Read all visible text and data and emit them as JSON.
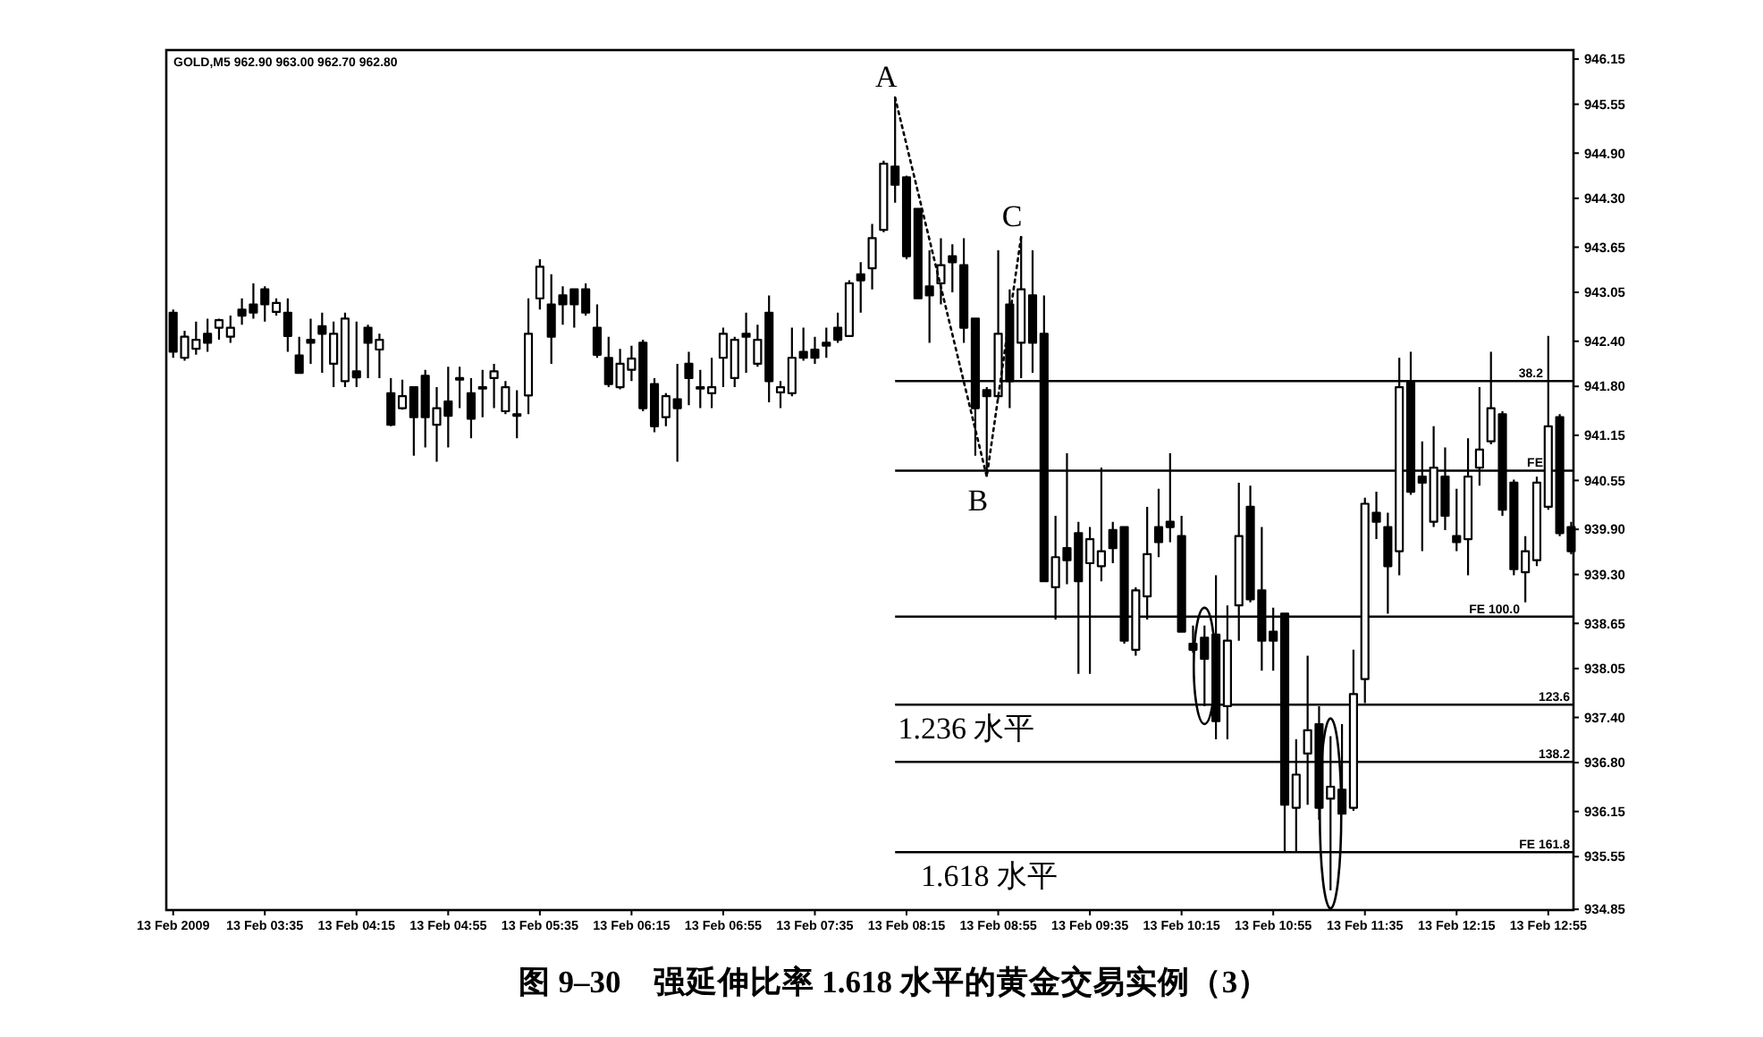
{
  "chart_data": {
    "type": "candlestick",
    "title": "图 9–30　强延伸比率 1.618 水平的黄金交易实例（3）",
    "subtitle": "GOLD,M5 962.90 963.00 962.70 962.80",
    "color": "#000000",
    "x": [
      "2009-02-13T02:55",
      "2009-02-13T03:00",
      "2009-02-13T03:05",
      "2009-02-13T03:10",
      "2009-02-13T03:15",
      "2009-02-13T03:20",
      "2009-02-13T03:25",
      "2009-02-13T03:30",
      "2009-02-13T03:35",
      "2009-02-13T03:40",
      "2009-02-13T03:45",
      "2009-02-13T03:50",
      "2009-02-13T03:55",
      "2009-02-13T04:00",
      "2009-02-13T04:05",
      "2009-02-13T04:10",
      "2009-02-13T04:15",
      "2009-02-13T04:20",
      "2009-02-13T04:25",
      "2009-02-13T04:30",
      "2009-02-13T04:35",
      "2009-02-13T04:40",
      "2009-02-13T04:45",
      "2009-02-13T04:50",
      "2009-02-13T04:55",
      "2009-02-13T05:00",
      "2009-02-13T05:05",
      "2009-02-13T05:10",
      "2009-02-13T05:15",
      "2009-02-13T05:20",
      "2009-02-13T05:25",
      "2009-02-13T05:30",
      "2009-02-13T05:35",
      "2009-02-13T05:40",
      "2009-02-13T05:45",
      "2009-02-13T05:50",
      "2009-02-13T05:55",
      "2009-02-13T06:00",
      "2009-02-13T06:05",
      "2009-02-13T06:10",
      "2009-02-13T06:15",
      "2009-02-13T06:20",
      "2009-02-13T06:25",
      "2009-02-13T06:30",
      "2009-02-13T06:35",
      "2009-02-13T06:40",
      "2009-02-13T06:45",
      "2009-02-13T06:50",
      "2009-02-13T06:55",
      "2009-02-13T07:00",
      "2009-02-13T07:05",
      "2009-02-13T07:10",
      "2009-02-13T07:15",
      "2009-02-13T07:20",
      "2009-02-13T07:25",
      "2009-02-13T07:30",
      "2009-02-13T07:35",
      "2009-02-13T07:40",
      "2009-02-13T07:45",
      "2009-02-13T07:50",
      "2009-02-13T07:55",
      "2009-02-13T08:00",
      "2009-02-13T08:05",
      "2009-02-13T08:10",
      "2009-02-13T08:15",
      "2009-02-13T08:20",
      "2009-02-13T08:25",
      "2009-02-13T08:30",
      "2009-02-13T08:35",
      "2009-02-13T08:40",
      "2009-02-13T08:45",
      "2009-02-13T08:50",
      "2009-02-13T08:55",
      "2009-02-13T09:00",
      "2009-02-13T09:05",
      "2009-02-13T09:10",
      "2009-02-13T09:15",
      "2009-02-13T09:20",
      "2009-02-13T09:25",
      "2009-02-13T09:30",
      "2009-02-13T09:35",
      "2009-02-13T09:40",
      "2009-02-13T09:45",
      "2009-02-13T09:50",
      "2009-02-13T09:55",
      "2009-02-13T10:00",
      "2009-02-13T10:05",
      "2009-02-13T10:10",
      "2009-02-13T10:15",
      "2009-02-13T10:20",
      "2009-02-13T10:25",
      "2009-02-13T10:30",
      "2009-02-13T10:35",
      "2009-02-13T10:40",
      "2009-02-13T10:45",
      "2009-02-13T10:50",
      "2009-02-13T10:55",
      "2009-02-13T11:00",
      "2009-02-13T11:05",
      "2009-02-13T11:10",
      "2009-02-13T11:15",
      "2009-02-13T11:20",
      "2009-02-13T11:25",
      "2009-02-13T11:30",
      "2009-02-13T11:35",
      "2009-02-13T11:40",
      "2009-02-13T11:45",
      "2009-02-13T11:50",
      "2009-02-13T11:55",
      "2009-02-13T12:00",
      "2009-02-13T12:05",
      "2009-02-13T12:10",
      "2009-02-13T12:15",
      "2009-02-13T12:20",
      "2009-02-13T12:25",
      "2009-02-13T12:30",
      "2009-02-13T12:35",
      "2009-02-13T12:40",
      "2009-02-13T12:45",
      "2009-02-13T12:50",
      "2009-02-13T12:55",
      "2009-02-13T13:00",
      "2009-02-13T13:05"
    ],
    "ohlc": [
      [
        942.78,
        942.82,
        942.18,
        942.26
      ],
      [
        942.18,
        942.54,
        942.14,
        942.46
      ],
      [
        942.3,
        942.66,
        942.22,
        942.42
      ],
      [
        942.5,
        942.7,
        942.26,
        942.38
      ],
      [
        942.58,
        942.7,
        942.42,
        942.68
      ],
      [
        942.46,
        942.74,
        942.38,
        942.58
      ],
      [
        942.82,
        942.97,
        942.62,
        942.74
      ],
      [
        942.89,
        943.17,
        942.7,
        942.78
      ],
      [
        943.09,
        943.13,
        942.66,
        942.89
      ],
      [
        942.79,
        942.97,
        942.74,
        942.91
      ],
      [
        942.78,
        942.97,
        942.26,
        942.47
      ],
      [
        942.21,
        942.46,
        941.98,
        941.98
      ],
      [
        942.42,
        942.7,
        942.1,
        942.38
      ],
      [
        942.6,
        942.78,
        941.98,
        942.5
      ],
      [
        942.1,
        942.66,
        941.79,
        942.5
      ],
      [
        941.87,
        942.78,
        941.79,
        942.7
      ],
      [
        942.0,
        942.66,
        941.79,
        941.92
      ],
      [
        942.58,
        942.62,
        941.91,
        942.38
      ],
      [
        942.29,
        942.5,
        941.91,
        942.42
      ],
      [
        941.71,
        941.91,
        941.27,
        941.29
      ],
      [
        941.51,
        941.89,
        941.49,
        941.67
      ],
      [
        941.79,
        941.79,
        940.88,
        941.39
      ],
      [
        941.94,
        942.02,
        940.99,
        941.39
      ],
      [
        941.29,
        941.79,
        940.8,
        941.51
      ],
      [
        941.6,
        942.06,
        940.99,
        941.41
      ],
      [
        941.91,
        942.06,
        941.51,
        941.89
      ],
      [
        941.71,
        941.91,
        941.11,
        941.37
      ],
      [
        941.79,
        942.02,
        941.39,
        941.77
      ],
      [
        941.91,
        942.1,
        941.51,
        942.0
      ],
      [
        941.47,
        941.87,
        941.43,
        941.79
      ],
      [
        941.41,
        941.75,
        941.11,
        941.43
      ],
      [
        941.68,
        942.97,
        941.43,
        942.5
      ],
      [
        942.97,
        943.49,
        942.82,
        943.39
      ],
      [
        942.89,
        943.29,
        942.1,
        942.46
      ],
      [
        943.01,
        943.13,
        942.62,
        942.89
      ],
      [
        943.09,
        943.09,
        942.58,
        942.89
      ],
      [
        943.09,
        943.17,
        942.74,
        942.78
      ],
      [
        942.58,
        942.89,
        942.18,
        942.22
      ],
      [
        942.18,
        942.46,
        941.79,
        941.83
      ],
      [
        941.79,
        942.3,
        941.76,
        942.1
      ],
      [
        942.02,
        942.34,
        941.87,
        942.17
      ],
      [
        942.38,
        942.42,
        941.47,
        941.51
      ],
      [
        941.83,
        941.91,
        941.19,
        941.27
      ],
      [
        941.39,
        941.71,
        941.27,
        941.67
      ],
      [
        941.63,
        942.1,
        940.8,
        941.51
      ],
      [
        942.1,
        942.26,
        941.55,
        941.91
      ],
      [
        941.77,
        942.02,
        941.51,
        941.79
      ],
      [
        941.71,
        942.18,
        941.51,
        941.79
      ],
      [
        942.18,
        942.58,
        941.79,
        942.5
      ],
      [
        941.91,
        942.46,
        941.79,
        942.42
      ],
      [
        942.5,
        942.78,
        941.98,
        942.46
      ],
      [
        942.1,
        942.62,
        942.06,
        942.42
      ],
      [
        942.78,
        943.01,
        941.59,
        941.87
      ],
      [
        941.72,
        941.87,
        941.51,
        941.79
      ],
      [
        941.71,
        942.58,
        941.67,
        942.18
      ],
      [
        942.26,
        942.58,
        942.14,
        942.18
      ],
      [
        942.29,
        942.46,
        942.1,
        942.18
      ],
      [
        942.38,
        942.58,
        942.18,
        942.34
      ],
      [
        942.58,
        942.78,
        942.38,
        942.42
      ],
      [
        942.47,
        943.21,
        942.46,
        943.17
      ],
      [
        943.29,
        943.45,
        942.78,
        943.21
      ],
      [
        943.37,
        943.96,
        943.09,
        943.77
      ],
      [
        943.88,
        944.8,
        943.85,
        944.76
      ],
      [
        944.72,
        945.64,
        944.24,
        944.48
      ],
      [
        944.58,
        944.6,
        943.49,
        943.53
      ],
      [
        944.16,
        944.16,
        942.97,
        942.97
      ],
      [
        943.13,
        943.61,
        942.38,
        943.01
      ],
      [
        943.17,
        943.77,
        942.89,
        943.41
      ],
      [
        943.53,
        943.69,
        943.05,
        943.45
      ],
      [
        943.41,
        943.77,
        942.38,
        942.58
      ],
      [
        942.7,
        942.7,
        940.88,
        941.51
      ],
      [
        941.75,
        941.79,
        940.6,
        941.67
      ],
      [
        941.67,
        943.61,
        941.63,
        942.5
      ],
      [
        942.89,
        943.09,
        941.51,
        941.87
      ],
      [
        942.38,
        943.79,
        941.91,
        943.09
      ],
      [
        943.01,
        943.61,
        941.98,
        942.38
      ],
      [
        942.5,
        943.01,
        939.21,
        939.21
      ],
      [
        939.13,
        940.08,
        938.7,
        939.53
      ],
      [
        939.65,
        940.91,
        939.17,
        939.49
      ],
      [
        939.85,
        940.0,
        937.98,
        939.21
      ],
      [
        939.45,
        939.93,
        937.98,
        939.77
      ],
      [
        939.41,
        940.72,
        939.21,
        939.61
      ],
      [
        939.89,
        940.0,
        939.45,
        939.65
      ],
      [
        939.93,
        939.93,
        938.38,
        938.42
      ],
      [
        938.3,
        939.13,
        938.22,
        939.09
      ],
      [
        939.01,
        940.2,
        938.7,
        939.57
      ],
      [
        939.93,
        940.44,
        939.53,
        939.73
      ],
      [
        940.0,
        940.91,
        939.73,
        939.93
      ],
      [
        939.81,
        940.08,
        938.54,
        938.54
      ],
      [
        938.38,
        938.62,
        938.26,
        938.3
      ],
      [
        938.46,
        938.62,
        937.55,
        938.18
      ],
      [
        938.5,
        939.29,
        937.11,
        937.35
      ],
      [
        937.55,
        938.89,
        937.11,
        938.42
      ],
      [
        938.89,
        940.52,
        938.42,
        939.81
      ],
      [
        940.2,
        940.48,
        938.93,
        938.97
      ],
      [
        939.09,
        939.93,
        938.02,
        938.42
      ],
      [
        938.54,
        938.86,
        938.02,
        938.42
      ],
      [
        938.78,
        938.78,
        935.61,
        936.24
      ],
      [
        936.2,
        937.11,
        935.61,
        936.64
      ],
      [
        936.92,
        938.22,
        936.24,
        937.23
      ],
      [
        937.31,
        937.55,
        936.04,
        936.2
      ],
      [
        936.32,
        937.15,
        935.1,
        936.48
      ],
      [
        936.44,
        937.31,
        936.12,
        936.12
      ],
      [
        936.2,
        938.3,
        936.16,
        937.71
      ],
      [
        937.91,
        940.32,
        937.59,
        940.24
      ],
      [
        940.12,
        940.4,
        939.77,
        940.0
      ],
      [
        939.93,
        940.12,
        938.78,
        939.41
      ],
      [
        939.61,
        942.18,
        939.29,
        941.79
      ],
      [
        941.87,
        942.26,
        940.36,
        940.4
      ],
      [
        940.6,
        941.07,
        939.61,
        940.52
      ],
      [
        940.0,
        941.27,
        939.93,
        940.72
      ],
      [
        940.6,
        940.99,
        939.89,
        940.08
      ],
      [
        939.81,
        940.44,
        939.61,
        939.73
      ],
      [
        939.77,
        941.11,
        939.29,
        940.6
      ],
      [
        940.72,
        941.79,
        940.48,
        940.96
      ],
      [
        941.07,
        942.26,
        941.03,
        941.51
      ],
      [
        941.43,
        941.47,
        940.08,
        940.16
      ],
      [
        940.52,
        940.56,
        939.29,
        939.37
      ],
      [
        939.33,
        939.81,
        938.93,
        939.61
      ],
      [
        939.49,
        940.6,
        939.41,
        940.52
      ],
      [
        940.2,
        942.47,
        940.16,
        941.27
      ],
      [
        941.39,
        941.43,
        939.81,
        939.85
      ],
      [
        939.93,
        940.0,
        939.57,
        939.61
      ]
    ],
    "series": [
      {
        "type": "line",
        "x": [
          "2009-02-13T08:10",
          "2009-02-13T08:50",
          "2009-02-13T09:05"
        ],
        "values": [
          945.64,
          940.6,
          943.79
        ],
        "color": "#000000",
        "line_style": "dotted"
      }
    ],
    "annotations": [
      {
        "text": "A",
        "x": "2009-02-13T08:10",
        "y": 945.64
      },
      {
        "text": "B",
        "x": "2009-02-13T08:50",
        "y": 940.6
      },
      {
        "text": "C",
        "x": "2009-02-13T09:05",
        "y": 943.79
      },
      {
        "text": "1.236 水平",
        "x": "2009-02-13T08:45",
        "y": 937.57
      },
      {
        "text": "1.618 水平",
        "x": "2009-02-13T08:55",
        "y": 935.61
      },
      {
        "text": "38.2",
        "x": "2009-02-13T13:06",
        "y": 941.87
      },
      {
        "text": "123.6",
        "x": "2009-02-13T13:06",
        "y": 937.57
      },
      {
        "text": "138.2",
        "x": "2009-02-13T13:06",
        "y": 936.81
      }
    ],
    "ref_lines": [
      {
        "axis": "y",
        "value": 941.87
      },
      {
        "axis": "y",
        "value": 940.68,
        "label": "FE"
      },
      {
        "axis": "y",
        "value": 938.74,
        "label": "FE 100.0"
      },
      {
        "axis": "y",
        "value": 937.57
      },
      {
        "axis": "y",
        "value": 936.81
      },
      {
        "axis": "y",
        "value": 935.61,
        "label": "FE 161.8"
      }
    ],
    "xlim": [
      "2009-02-13T02:52",
      "2009-02-13T13:06"
    ],
    "xticks": [
      {
        "value": "2009-02-13T02:55",
        "label": "13 Feb 2009"
      },
      {
        "value": "2009-02-13T03:35",
        "label": "13 Feb 03:35"
      },
      {
        "value": "2009-02-13T04:15",
        "label": "13 Feb 04:15"
      },
      {
        "value": "2009-02-13T04:55",
        "label": "13 Feb 04:55"
      },
      {
        "value": "2009-02-13T05:35",
        "label": "13 Feb 05:35"
      },
      {
        "value": "2009-02-13T06:15",
        "label": "13 Feb 06:15"
      },
      {
        "value": "2009-02-13T06:55",
        "label": "13 Feb 06:55"
      },
      {
        "value": "2009-02-13T07:35",
        "label": "13 Feb 07:35"
      },
      {
        "value": "2009-02-13T08:15",
        "label": "13 Feb 08:15"
      },
      {
        "value": "2009-02-13T08:55",
        "label": "13 Feb 08:55"
      },
      {
        "value": "2009-02-13T09:35",
        "label": "13 Feb 09:35"
      },
      {
        "value": "2009-02-13T10:15",
        "label": "13 Feb 10:15"
      },
      {
        "value": "2009-02-13T10:55",
        "label": "13 Feb 10:55"
      },
      {
        "value": "2009-02-13T11:35",
        "label": "13 Feb 11:35"
      },
      {
        "value": "2009-02-13T12:15",
        "label": "13 Feb 12:15"
      },
      {
        "value": "2009-02-13T12:55",
        "label": "13 Feb 12:55"
      }
    ],
    "ylim": [
      934.84,
      946.27
    ],
    "yticks": [
      946.15,
      945.55,
      {
        "value": 944.9,
        "label": "944.90"
      },
      {
        "value": 944.3,
        "label": "944.30"
      },
      943.65,
      943.05,
      {
        "value": 942.4,
        "label": "942.40"
      },
      {
        "value": 941.8,
        "label": "941.80"
      },
      941.15,
      940.55,
      {
        "value": 939.9,
        "label": "939.90"
      },
      {
        "value": 939.3,
        "label": "939.30"
      },
      938.65,
      938.05,
      {
        "value": 937.4,
        "label": "937.40"
      },
      {
        "value": 936.8,
        "label": "936.80"
      },
      936.15,
      935.55,
      934.85
    ]
  }
}
